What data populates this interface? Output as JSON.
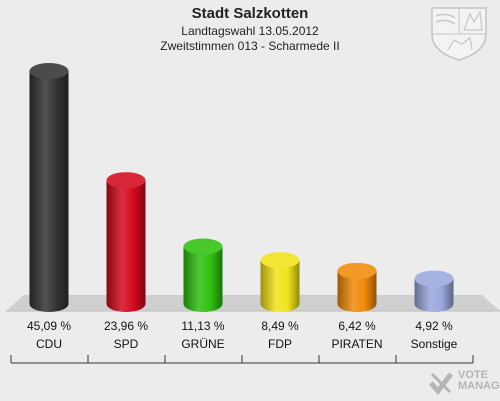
{
  "header": {
    "title": "Stadt Salzkotten",
    "subtitle": "Landtagswahl 13.05.2012",
    "district": "Zweitstimmen 013 - Scharmede II"
  },
  "watermark": {
    "line1": "VOTE",
    "line2": "MANAGER"
  },
  "colors": {
    "background": "#ececec",
    "floor": "#cfcfcf",
    "CDU": "#333333",
    "SPD": "#d40a1e",
    "GRUENE": "#2fc010",
    "FDP": "#f2e21a",
    "PIRATEN": "#f08a0a",
    "Sonstige": "#9aa8dc"
  },
  "chart_data": {
    "type": "bar",
    "title": "Stadt Salzkotten",
    "categories": [
      "CDU",
      "SPD",
      "GRÜNE",
      "FDP",
      "PIRATEN",
      "Sonstige"
    ],
    "values": [
      45.09,
      23.96,
      11.13,
      8.49,
      6.42,
      4.92
    ],
    "value_labels": [
      "45,09 %",
      "23,96 %",
      "11,13 %",
      "8,49 %",
      "6,42 %",
      "4,92 %"
    ],
    "colors": [
      "#333333",
      "#d40a1e",
      "#2fc010",
      "#f2e21a",
      "#f08a0a",
      "#9aa8dc"
    ],
    "unit": "%",
    "ylim": [
      0,
      45.09
    ],
    "grid": false,
    "legend": "none"
  }
}
